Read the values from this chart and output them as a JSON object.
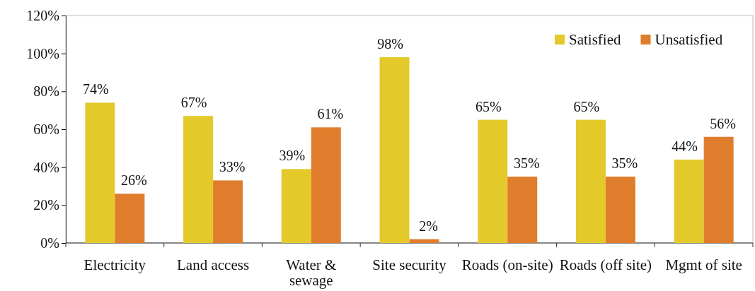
{
  "chart_data": {
    "type": "bar",
    "categories": [
      "Electricity",
      "Land access",
      "Water & sewage",
      "Site security",
      "Roads (on-site)",
      "Roads (off site)",
      "Mgmt of site"
    ],
    "series": [
      {
        "name": "Satisfied",
        "color": "#e3c92a",
        "values": [
          74,
          67,
          39,
          98,
          65,
          65,
          44
        ],
        "value_labels": [
          "74%",
          "67%",
          "39%",
          "98%",
          "65%",
          "65%",
          "44%"
        ]
      },
      {
        "name": "Unsatisfied",
        "color": "#e07d2c",
        "values": [
          26,
          33,
          61,
          2,
          35,
          35,
          56
        ],
        "value_labels": [
          "26%",
          "33%",
          "61%",
          "2%",
          "35%",
          "35%",
          "56%"
        ]
      }
    ],
    "ylim": [
      0,
      120
    ],
    "yticks": [
      {
        "value": 0,
        "label": "0%"
      },
      {
        "value": 20,
        "label": "20%"
      },
      {
        "value": 40,
        "label": "40%"
      },
      {
        "value": 60,
        "label": "60%"
      },
      {
        "value": 80,
        "label": "80%"
      },
      {
        "value": 100,
        "label": "100%"
      },
      {
        "value": 120,
        "label": "120%"
      }
    ],
    "legend": "top right"
  }
}
